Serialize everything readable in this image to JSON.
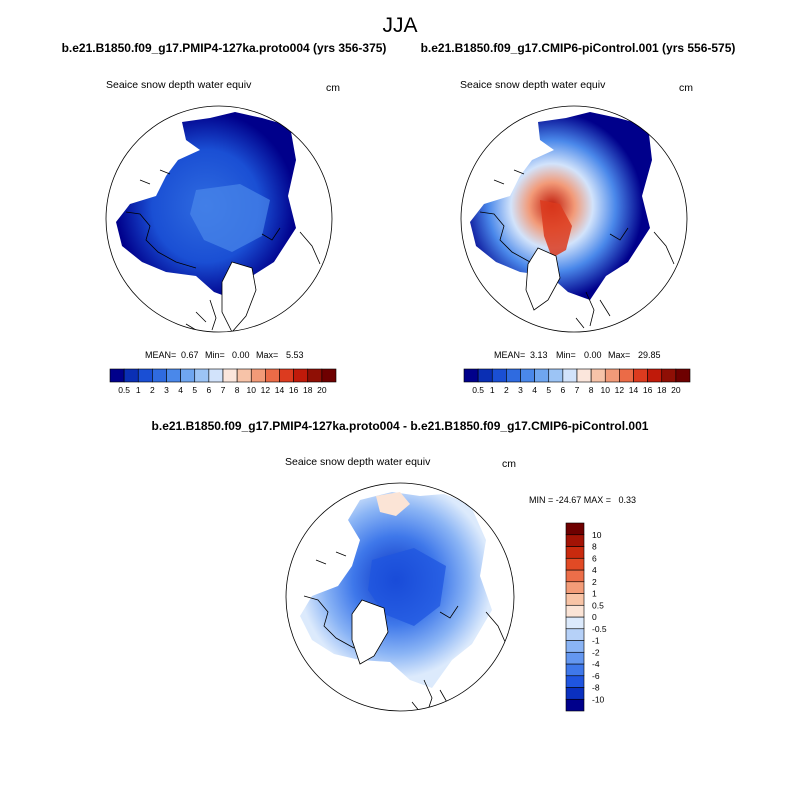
{
  "chart_data": {
    "type": "heatmap",
    "title": "JJA",
    "colors": {
      "ocean": "#ffffff",
      "land_outline": "#000000",
      "abs_scale": [
        "#00008b",
        "#0a2fb4",
        "#1a4fd4",
        "#2f6be0",
        "#4a88ea",
        "#6fa6f0",
        "#9cc4f5",
        "#d2e3fb",
        "#fbe6dc",
        "#f7c3a8",
        "#f29a78",
        "#eb6b47",
        "#dc3b1f",
        "#c01a0a",
        "#8f0f05",
        "#6e0000"
      ],
      "diff_scale": [
        "#00008b",
        "#0a30c0",
        "#1f55e0",
        "#3f78ea",
        "#6497f0",
        "#8ab4f5",
        "#b6d1f8",
        "#dceafc",
        "#fbe4d6",
        "#f8c4a6",
        "#f39c78",
        "#ec6e49",
        "#e14a25",
        "#c92a0e",
        "#a31305",
        "#6e0000"
      ]
    },
    "panels": [
      {
        "case": "b.e21.B1850.f09_g17.PMIP4-127ka.proto004 (yrs 356-375)",
        "variable": "Seaice snow depth water equiv",
        "units": "cm",
        "stats": {
          "mean_label": "MEAN=",
          "mean": "0.67",
          "min_label": "Min=",
          "min": "0.00",
          "max_label": "Max=",
          "max": "5.53"
        },
        "levels": [
          "0.5",
          "1",
          "2",
          "3",
          "4",
          "5",
          "6",
          "7",
          "8",
          "10",
          "12",
          "14",
          "16",
          "18",
          "20"
        ]
      },
      {
        "case": "b.e21.B1850.f09_g17.CMIP6-piControl.001 (yrs 556-575)",
        "variable": "Seaice snow depth water equiv",
        "units": "cm",
        "stats": {
          "mean_label": "MEAN=",
          "mean": "3.13",
          "min_label": "Min=",
          "min": "0.00",
          "max_label": "Max=",
          "max": "29.85"
        },
        "levels": [
          "0.5",
          "1",
          "2",
          "3",
          "4",
          "5",
          "6",
          "7",
          "8",
          "10",
          "12",
          "14",
          "16",
          "18",
          "20"
        ]
      },
      {
        "case": "b.e21.B1850.f09_g17.PMIP4-127ka.proto004 - b.e21.B1850.f09_g17.CMIP6-piControl.001",
        "variable": "Seaice snow depth water equiv",
        "units": "cm",
        "stats_text": "MIN = -24.67 MAX =   0.33",
        "levels": [
          "10",
          "8",
          "6",
          "4",
          "2",
          "1",
          "0.5",
          "0",
          "-0.5",
          "-1",
          "-2",
          "-4",
          "-6",
          "-8",
          "-10"
        ]
      }
    ]
  }
}
